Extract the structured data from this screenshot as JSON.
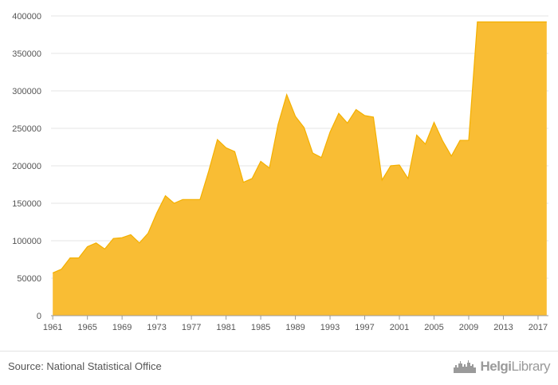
{
  "chart_data": {
    "type": "area",
    "title": "",
    "xlabel": "",
    "ylabel": "",
    "x": [
      1961,
      1962,
      1963,
      1964,
      1965,
      1966,
      1967,
      1968,
      1969,
      1970,
      1971,
      1972,
      1973,
      1974,
      1975,
      1976,
      1977,
      1978,
      1979,
      1980,
      1981,
      1982,
      1983,
      1984,
      1985,
      1986,
      1987,
      1988,
      1989,
      1990,
      1991,
      1992,
      1993,
      1994,
      1995,
      1996,
      1997,
      1998,
      1999,
      2000,
      2001,
      2002,
      2003,
      2004,
      2005,
      2006,
      2007,
      2008,
      2009,
      2010,
      2011,
      2012,
      2013,
      2014,
      2015,
      2016,
      2017,
      2018
    ],
    "values": [
      57000,
      62000,
      77000,
      77000,
      92000,
      97000,
      89000,
      103000,
      104000,
      108000,
      97000,
      110000,
      137000,
      160000,
      150000,
      155000,
      155000,
      155000,
      193000,
      235000,
      224000,
      219000,
      178000,
      183000,
      206000,
      197000,
      255000,
      295000,
      266000,
      251000,
      217000,
      211000,
      245000,
      270000,
      257000,
      275000,
      267000,
      265000,
      181000,
      200000,
      201000,
      183000,
      241000,
      229000,
      258000,
      233000,
      213000,
      234000,
      234000,
      392000,
      392000,
      392000,
      392000,
      392000,
      392000,
      392000,
      392000,
      392000
    ],
    "xlim": [
      1960.8,
      2018.2
    ],
    "ylim": [
      0,
      400000
    ],
    "x_ticks": [
      "1961",
      "1965",
      "1969",
      "1973",
      "1977",
      "1981",
      "1985",
      "1989",
      "1993",
      "1997",
      "2001",
      "2005",
      "2009",
      "2013",
      "2017"
    ],
    "y_ticks": [
      "0",
      "50000",
      "100000",
      "150000",
      "200000",
      "250000",
      "300000",
      "350000",
      "400000"
    ],
    "grid": "horizontal",
    "legend": "none",
    "fill_color": "#f9bd34",
    "line_color": "#f4b000",
    "grid_color": "#e4e4e4",
    "axis_color": "#9a9a9a"
  },
  "footer": {
    "source": "Source: National Statistical Office",
    "brand_bold": "Helgi",
    "brand_light": "Library",
    "brand_icon": "skyline-logo-icon"
  }
}
